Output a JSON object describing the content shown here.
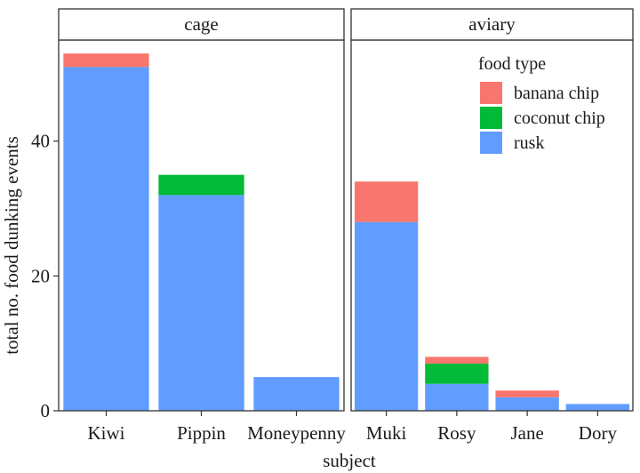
{
  "chart_data": {
    "type": "bar",
    "stacked": true,
    "xlabel": "subject",
    "ylabel": "total no. food dunking events",
    "ylim": [
      0,
      55
    ],
    "yticks": [
      0,
      20,
      40
    ],
    "legend": {
      "title": "food type",
      "position": "top-right",
      "entries": [
        "banana chip",
        "coconut chip",
        "rusk"
      ]
    },
    "colors": {
      "banana chip": "#F8766D",
      "coconut chip": "#00BA38",
      "rusk": "#619CFF"
    },
    "stack_order": [
      "rusk",
      "coconut chip",
      "banana chip"
    ],
    "panels": [
      {
        "strip": "cage",
        "categories": [
          "Kiwi",
          "Pippin",
          "Moneypenny"
        ],
        "series": [
          {
            "name": "rusk",
            "values": [
              51,
              32,
              5
            ]
          },
          {
            "name": "coconut chip",
            "values": [
              0,
              3,
              0
            ]
          },
          {
            "name": "banana chip",
            "values": [
              2,
              0,
              0
            ]
          }
        ]
      },
      {
        "strip": "aviary",
        "categories": [
          "Muki",
          "Rosy",
          "Jane",
          "Dory"
        ],
        "series": [
          {
            "name": "rusk",
            "values": [
              28,
              4,
              2,
              1
            ]
          },
          {
            "name": "coconut chip",
            "values": [
              0,
              3,
              0,
              0
            ]
          },
          {
            "name": "banana chip",
            "values": [
              6,
              1,
              1,
              0
            ]
          }
        ]
      }
    ]
  }
}
